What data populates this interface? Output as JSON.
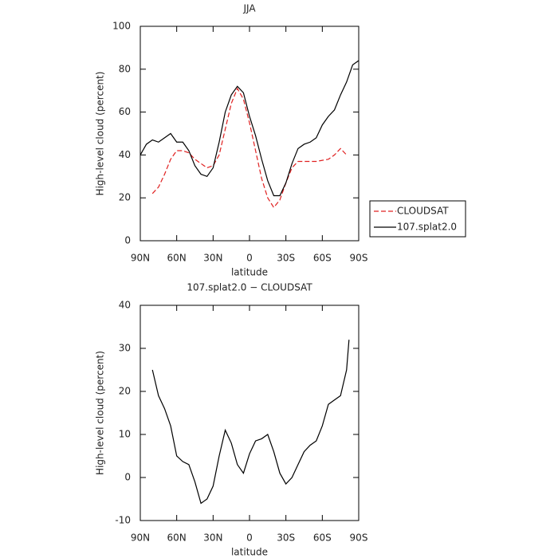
{
  "chart_data": [
    {
      "type": "line",
      "title": "JJA",
      "xlabel": "latitude",
      "ylabel": "High-level cloud (percent)",
      "xlim": [
        90,
        -90
      ],
      "xticks": [
        {
          "value": 90,
          "label": "90N"
        },
        {
          "value": 60,
          "label": "60N"
        },
        {
          "value": 30,
          "label": "30N"
        },
        0,
        {
          "value": -30,
          "label": "30S"
        },
        {
          "value": -60,
          "label": "60S"
        },
        {
          "value": -90,
          "label": "90S"
        }
      ],
      "ylim": [
        0,
        100
      ],
      "yticks": [
        0,
        20,
        40,
        60,
        80,
        100
      ],
      "legend": "right",
      "series": [
        {
          "name": "CLOUDSAT",
          "color": "#e02020",
          "dash": true,
          "x": [
            80,
            75,
            70,
            65,
            60,
            55,
            50,
            45,
            40,
            35,
            30,
            25,
            20,
            15,
            10,
            5,
            0,
            -5,
            -10,
            -15,
            -20,
            -25,
            -30,
            -35,
            -40,
            -45,
            -50,
            -55,
            -60,
            -65,
            -70,
            -75,
            -80
          ],
          "values": [
            22,
            25,
            31,
            38,
            42,
            42,
            41,
            38,
            36,
            34,
            35,
            40,
            52,
            64,
            71,
            66,
            55,
            42,
            29,
            20,
            15.5,
            19,
            27,
            34,
            37,
            37,
            37,
            37,
            37.5,
            38,
            40,
            43,
            40
          ]
        },
        {
          "name": "107.splat2.0",
          "color": "#000000",
          "dash": false,
          "x": [
            90,
            85,
            80,
            75,
            70,
            65,
            60,
            55,
            50,
            45,
            40,
            35,
            30,
            25,
            20,
            15,
            10,
            5,
            0,
            -5,
            -10,
            -15,
            -20,
            -25,
            -30,
            -35,
            -40,
            -45,
            -50,
            -55,
            -60,
            -65,
            -70,
            -75,
            -80,
            -85,
            -90
          ],
          "values": [
            40,
            45,
            47,
            46,
            48,
            50,
            46,
            46,
            42,
            35,
            31,
            30,
            34,
            46,
            60,
            68,
            72,
            69,
            58,
            49,
            38,
            28,
            21,
            21,
            27,
            36,
            43,
            45,
            46,
            48,
            54,
            58,
            61,
            68,
            74,
            82,
            84
          ]
        }
      ]
    },
    {
      "type": "line",
      "title": "107.splat2.0 − CLOUDSAT",
      "xlabel": "latitude",
      "ylabel": "High-level cloud (percent)",
      "xlim": [
        90,
        -90
      ],
      "xticks": [
        {
          "value": 90,
          "label": "90N"
        },
        {
          "value": 60,
          "label": "60N"
        },
        {
          "value": 30,
          "label": "30N"
        },
        0,
        {
          "value": -30,
          "label": "30S"
        },
        {
          "value": -60,
          "label": "60S"
        },
        {
          "value": -90,
          "label": "90S"
        }
      ],
      "ylim": [
        -10,
        40
      ],
      "yticks": [
        -10,
        0,
        10,
        20,
        30,
        40
      ],
      "series": [
        {
          "color": "#000000",
          "dash": false,
          "x": [
            80,
            75,
            70,
            65,
            60,
            55,
            50,
            45,
            40,
            35,
            30,
            25,
            20,
            15,
            10,
            5,
            0,
            -5,
            -10,
            -15,
            -20,
            -25,
            -30,
            -35,
            -40,
            -45,
            -50,
            -55,
            -60,
            -65,
            -70,
            -75,
            -80,
            -82
          ],
          "values": [
            25,
            19,
            16,
            12,
            5,
            3.7,
            3,
            -1,
            -6,
            -5,
            -2,
            5,
            11,
            8,
            3,
            1,
            5.5,
            8.5,
            9,
            10,
            6,
            1,
            -1.5,
            0,
            3,
            6,
            7.5,
            8.5,
            12,
            17,
            18,
            19,
            25,
            32
          ]
        }
      ]
    }
  ]
}
